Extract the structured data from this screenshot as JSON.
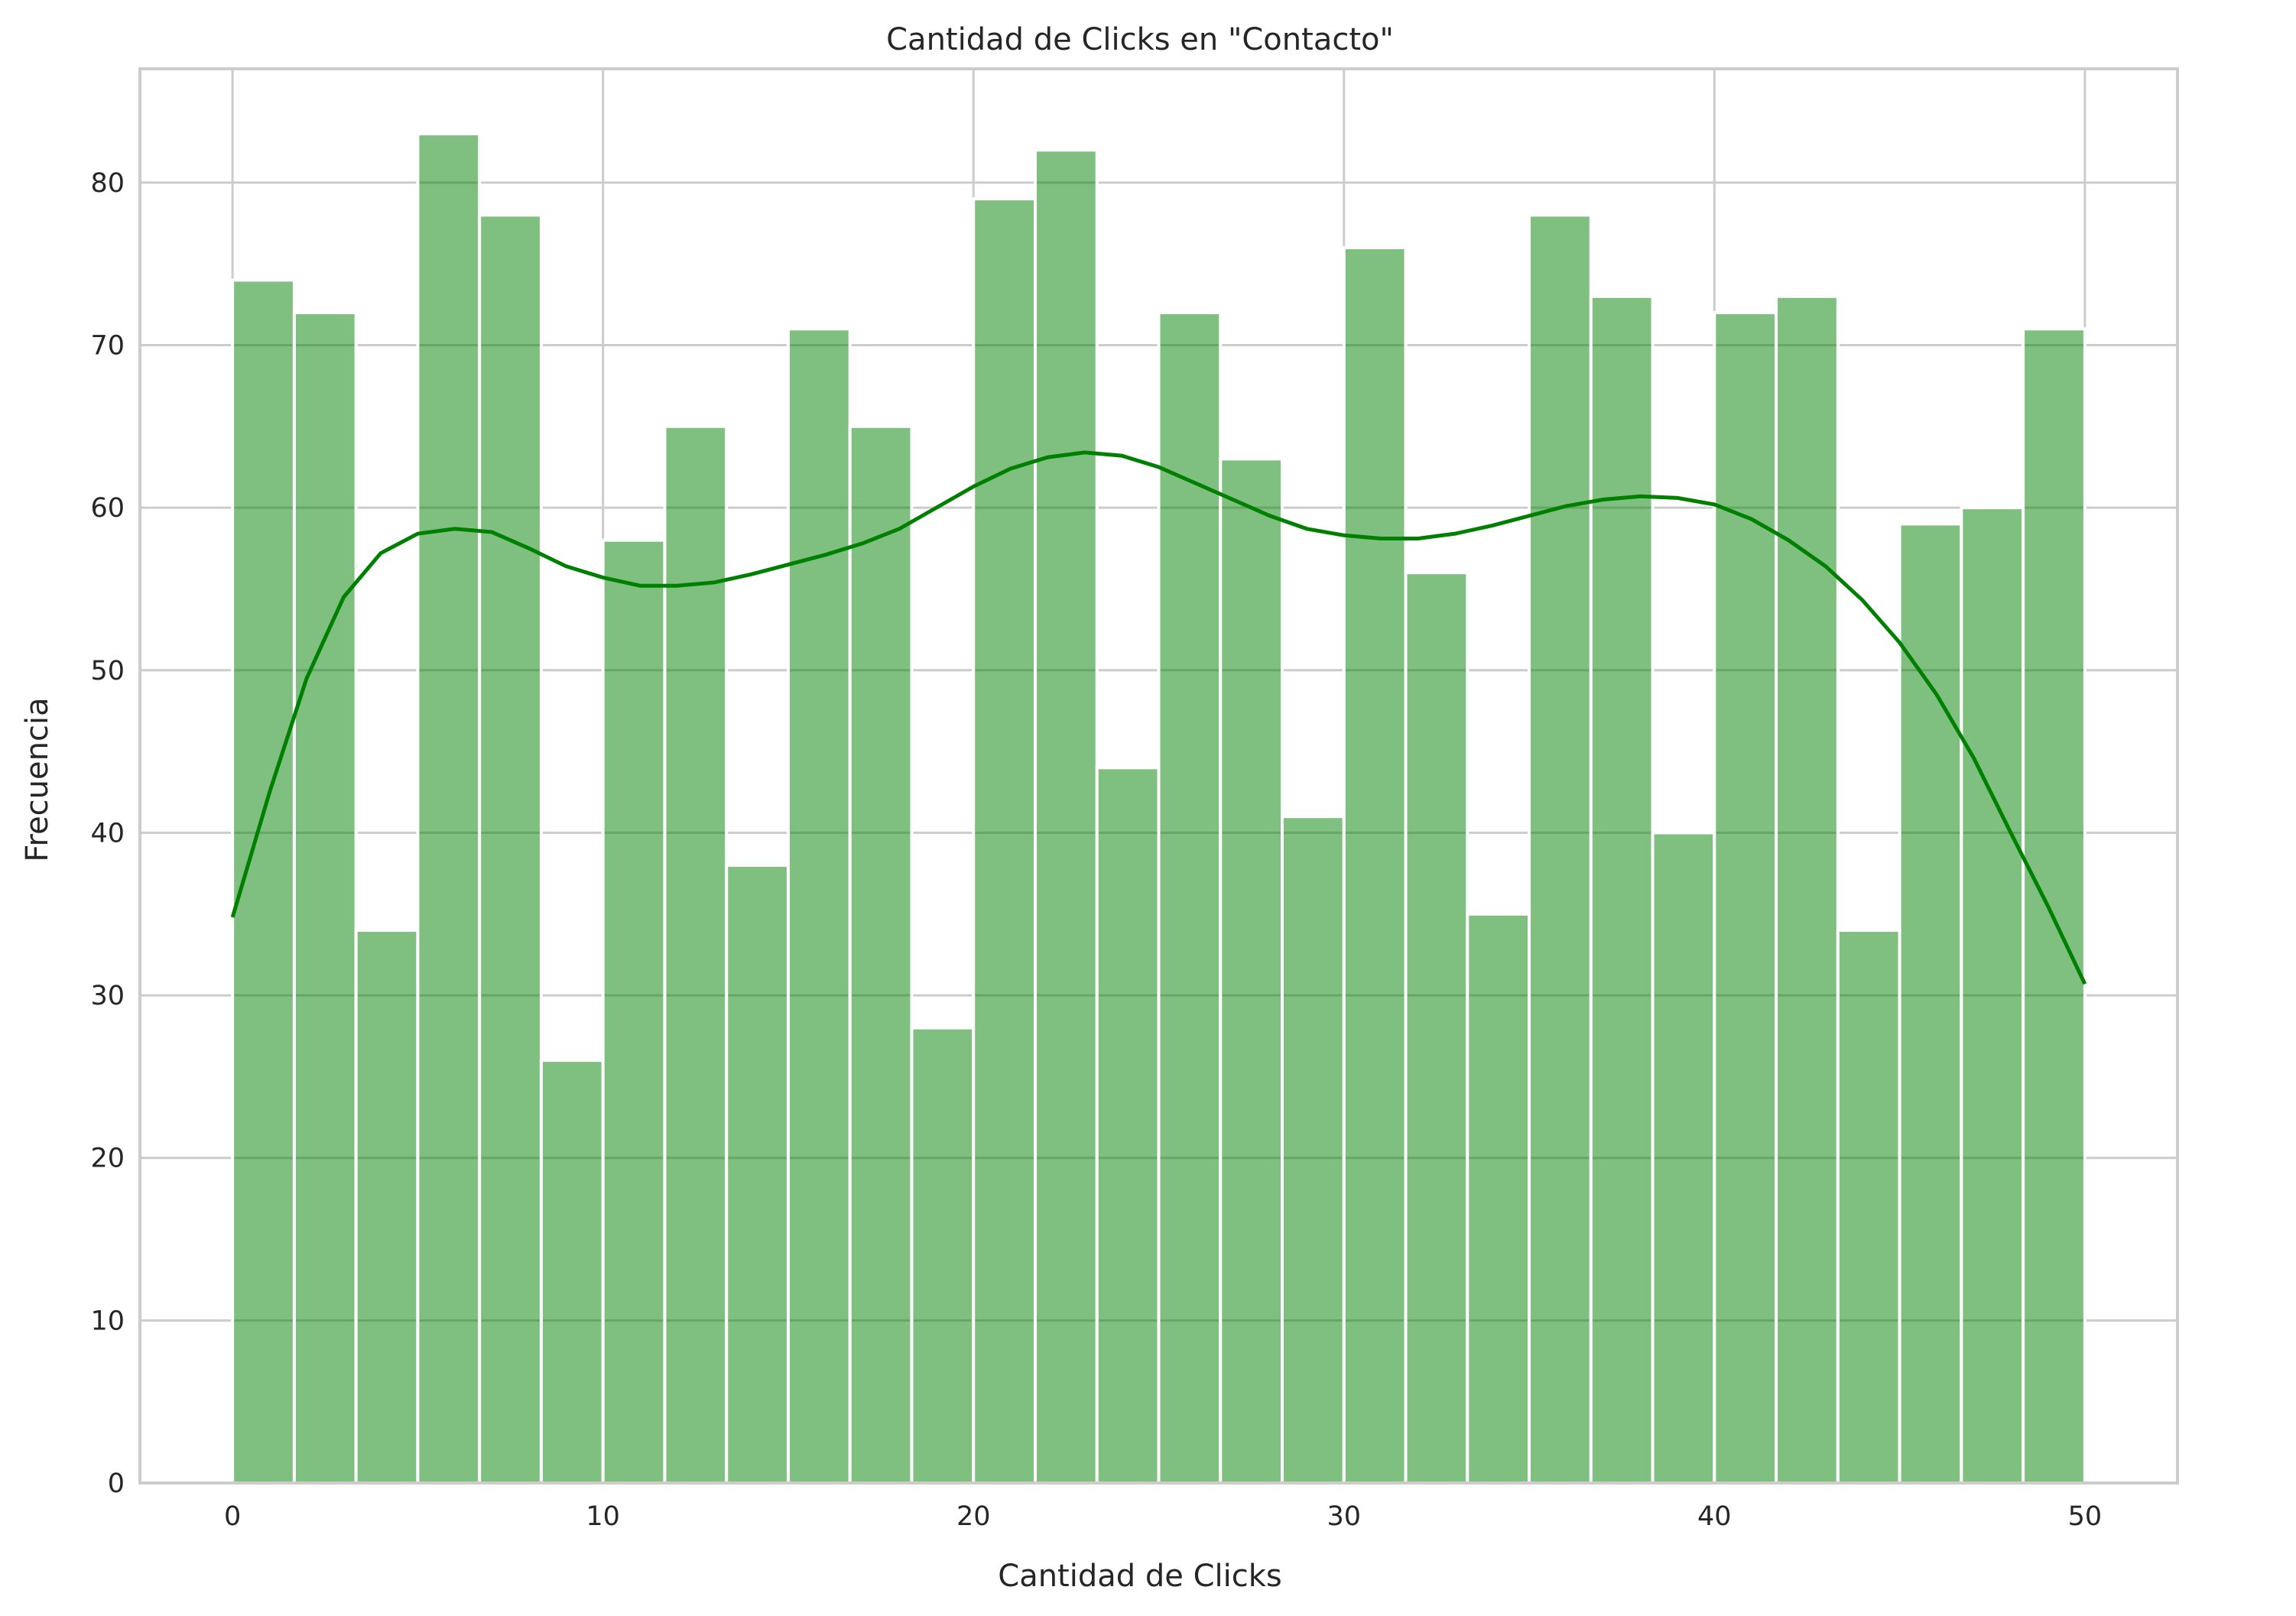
{
  "chart_data": {
    "type": "bar",
    "subtype": "histogram",
    "title": "Cantidad de Clicks en \"Contacto\"",
    "xlabel": "Cantidad de Clicks",
    "ylabel": "Frecuencia",
    "xlim": [
      -2.5,
      52.5
    ],
    "ylim": [
      0,
      87
    ],
    "xticks": [
      0,
      10,
      20,
      30,
      40,
      50
    ],
    "yticks": [
      0,
      10,
      20,
      30,
      40,
      50,
      60,
      70,
      80
    ],
    "grid": true,
    "bin_edges": [
      0,
      1.6667,
      3.3333,
      5,
      6.6667,
      8.3333,
      10,
      11.6667,
      13.3333,
      15,
      16.6667,
      18.3333,
      20,
      21.6667,
      23.3333,
      25,
      26.6667,
      28.3333,
      30,
      31.6667,
      33.3333,
      35,
      36.6667,
      38.3333,
      40,
      41.6667,
      43.3333,
      45,
      46.6667,
      48.3333,
      50
    ],
    "values": [
      74,
      72,
      34,
      83,
      78,
      26,
      58,
      65,
      38,
      71,
      65,
      28,
      79,
      82,
      44,
      72,
      63,
      41,
      76,
      56,
      35,
      78,
      73,
      40,
      72,
      73,
      34,
      59,
      60,
      71
    ],
    "kde": {
      "x": [
        0,
        1,
        2,
        3,
        4,
        5,
        6,
        7,
        8,
        9,
        10,
        11,
        12,
        13,
        14,
        15,
        16,
        17,
        18,
        19,
        20,
        21,
        22,
        23,
        24,
        25,
        26,
        27,
        28,
        29,
        30,
        31,
        32,
        33,
        34,
        35,
        36,
        37,
        38,
        39,
        40,
        41,
        42,
        43,
        44,
        45,
        46,
        47,
        48,
        49,
        50
      ],
      "y": [
        34.8,
        42.5,
        49.5,
        54.5,
        57.2,
        58.4,
        58.7,
        58.5,
        57.5,
        56.4,
        55.7,
        55.2,
        55.2,
        55.4,
        55.9,
        56.5,
        57.1,
        57.8,
        58.7,
        60.0,
        61.3,
        62.4,
        63.1,
        63.4,
        63.2,
        62.5,
        61.5,
        60.5,
        59.5,
        58.7,
        58.3,
        58.1,
        58.1,
        58.4,
        58.9,
        59.5,
        60.1,
        60.5,
        60.7,
        60.6,
        60.2,
        59.3,
        58.0,
        56.4,
        54.3,
        51.7,
        48.5,
        44.6,
        40.0,
        35.5,
        30.7
      ]
    },
    "colors": {
      "bar": "#008000",
      "kde": "#008000"
    }
  }
}
